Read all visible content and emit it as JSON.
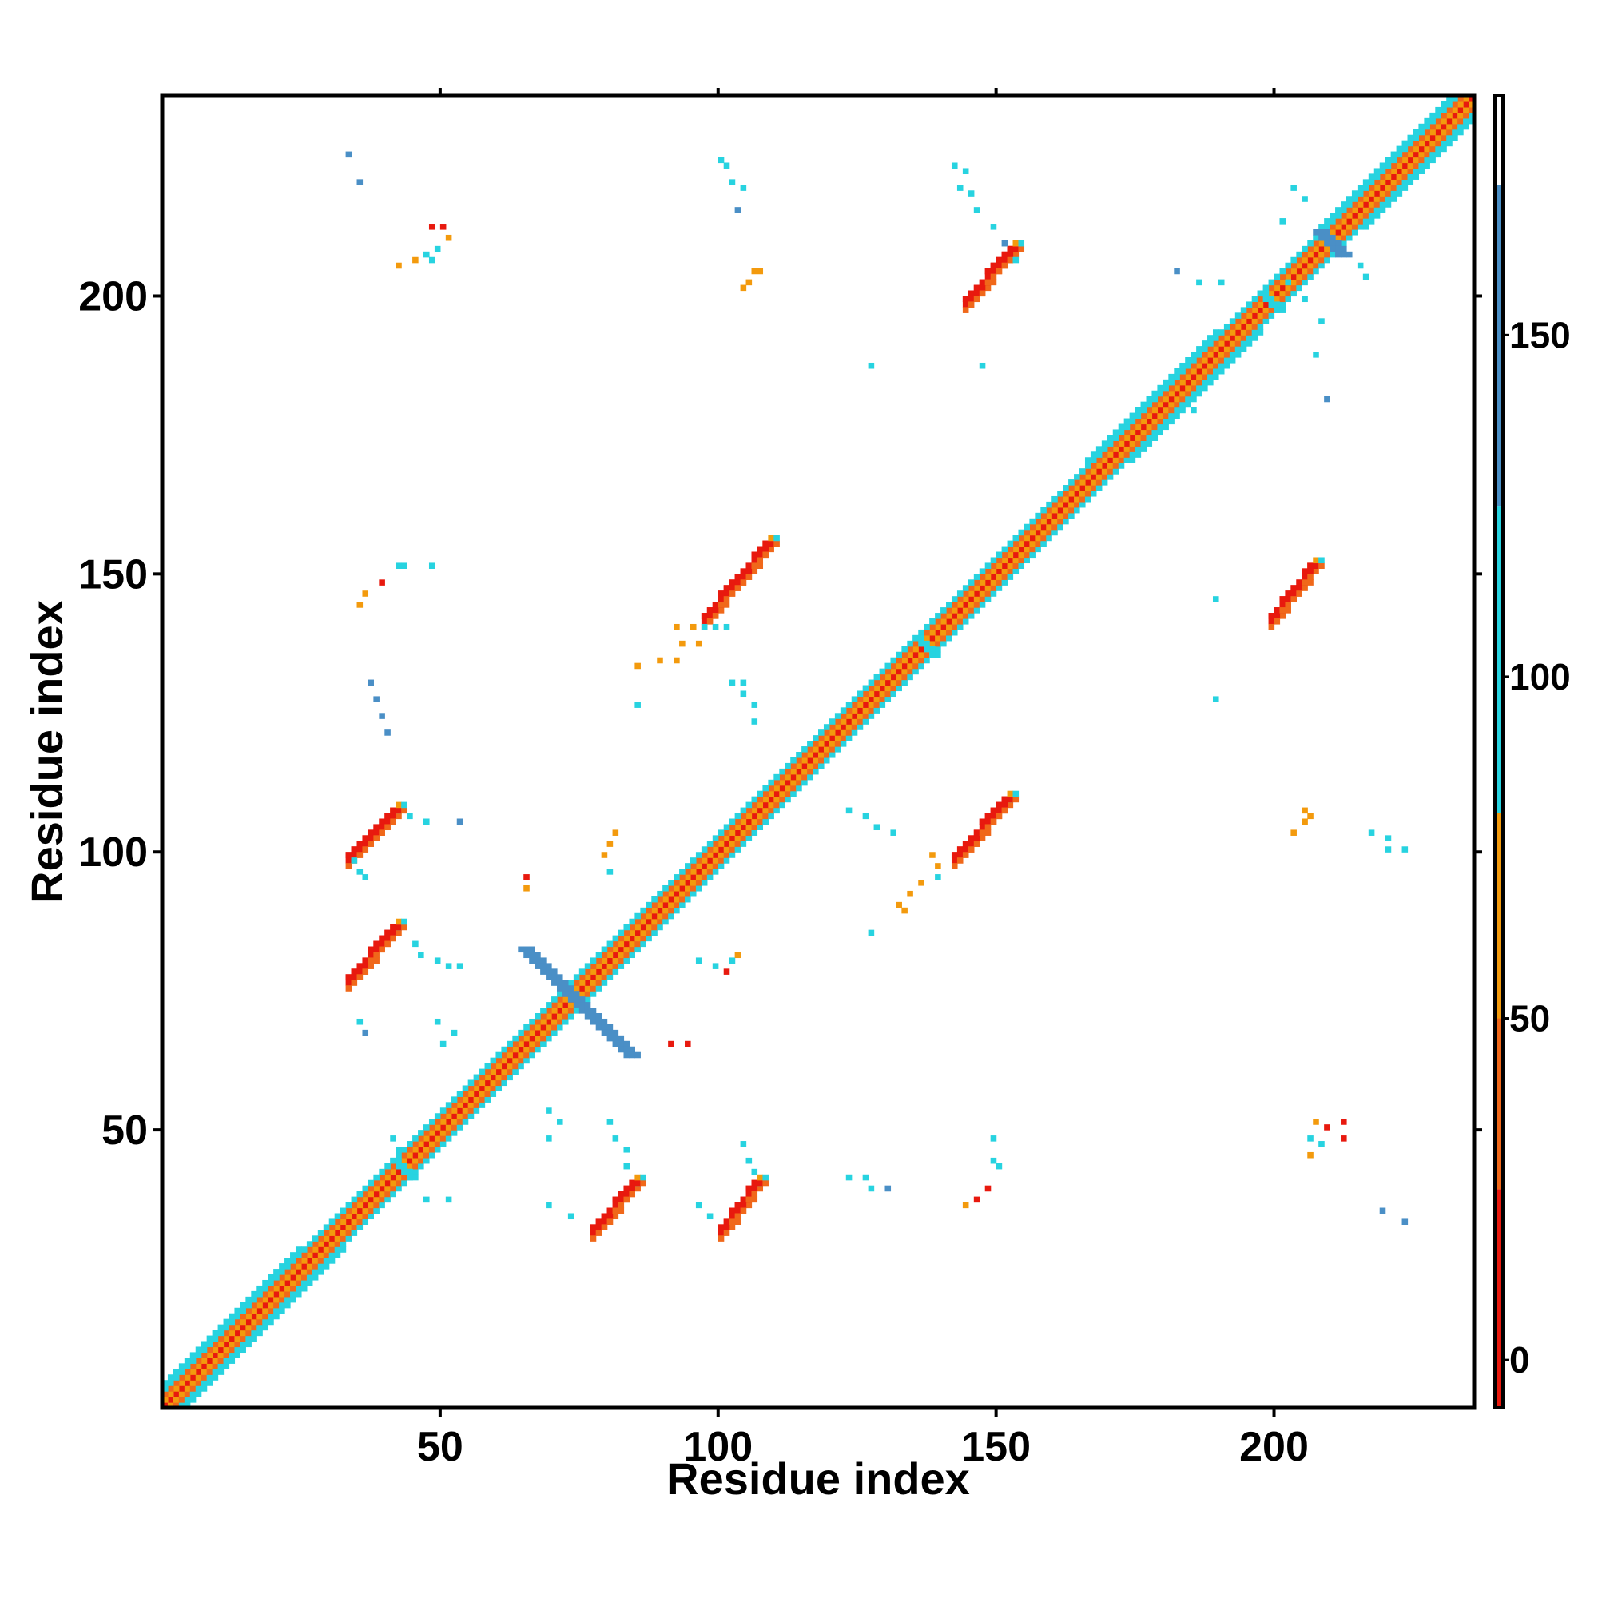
{
  "chart_data": {
    "type": "heatmap",
    "title": "",
    "xlabel": "Residue index",
    "ylabel": "Residue index",
    "xlim": [
      0,
      236
    ],
    "ylim": [
      0,
      236
    ],
    "xticks": [
      50,
      100,
      150,
      200
    ],
    "yticks": [
      50,
      100,
      150,
      200
    ],
    "colorbar": {
      "ticks": [
        0,
        50,
        100,
        150
      ],
      "range": [
        -7,
        185
      ],
      "bands": [
        {
          "from": -7,
          "to": 25,
          "color": "#e8190e"
        },
        {
          "from": 25,
          "to": 50,
          "color": "#f0681a"
        },
        {
          "from": 50,
          "to": 80,
          "color": "#f39a0d"
        },
        {
          "from": 80,
          "to": 125,
          "color": "#27d3e0"
        },
        {
          "from": 125,
          "to": 172,
          "color": "#4a8fc6"
        },
        {
          "from": 172,
          "to": 185,
          "color": "#ffffff"
        }
      ]
    },
    "color_classes": {
      "red": "#e8190e",
      "orange_red": "#f0681a",
      "orange": "#f39a0d",
      "cyan": "#27d3e0",
      "blue": "#4a8fc6"
    },
    "grid": false,
    "legend": "colorbar-right",
    "diagonal_band": {
      "from": 1,
      "to": 236
    },
    "segments": [
      {
        "x": [
          34,
          42
        ],
        "y": [
          78,
          87
        ],
        "w": 3,
        "color": "red"
      },
      {
        "x": [
          34,
          42
        ],
        "y": [
          100,
          108
        ],
        "w": 3,
        "color": "red"
      },
      {
        "x": [
          78,
          85
        ],
        "y": [
          33,
          41
        ],
        "w": 3,
        "color": "red"
      },
      {
        "x": [
          101,
          107
        ],
        "y": [
          33,
          41
        ],
        "w": 3,
        "color": "red"
      },
      {
        "x": [
          98,
          109
        ],
        "y": [
          143,
          156
        ],
        "w": 3,
        "color": "red"
      },
      {
        "x": [
          143,
          152
        ],
        "y": [
          100,
          110
        ],
        "w": 3,
        "color": "red"
      },
      {
        "x": [
          145,
          153
        ],
        "y": [
          200,
          209
        ],
        "w": 3,
        "color": "red"
      },
      {
        "x": [
          200,
          207
        ],
        "y": [
          143,
          152
        ],
        "w": 3,
        "color": "red"
      },
      {
        "x": [
          65,
          84
        ],
        "y": [
          83,
          64
        ],
        "w": 3,
        "color": "blue"
      },
      {
        "x": [
          208,
          212
        ],
        "y": [
          212,
          208
        ],
        "w": 3,
        "color": "blue"
      },
      {
        "x": [
          198,
          201
        ],
        "y": [
          201,
          198
        ],
        "w": 2,
        "color": "cyan"
      },
      {
        "x": [
          136,
          139
        ],
        "y": [
          139,
          136
        ],
        "w": 2,
        "color": "cyan"
      },
      {
        "x": [
          42,
          45
        ],
        "y": [
          45,
          42
        ],
        "w": 2,
        "color": "cyan"
      }
    ],
    "points": [
      [
        34,
        226,
        "blue"
      ],
      [
        36,
        221,
        "blue"
      ],
      [
        49,
        213,
        "red"
      ],
      [
        51,
        213,
        "red"
      ],
      [
        52,
        211,
        "orange"
      ],
      [
        50,
        209,
        "cyan"
      ],
      [
        48,
        208,
        "cyan"
      ],
      [
        46,
        207,
        "orange"
      ],
      [
        43,
        206,
        "orange"
      ],
      [
        49,
        207,
        "cyan"
      ],
      [
        101,
        225,
        "cyan"
      ],
      [
        102,
        224,
        "cyan"
      ],
      [
        103,
        221,
        "cyan"
      ],
      [
        105,
        220,
        "cyan"
      ],
      [
        104,
        216,
        "blue"
      ],
      [
        107,
        205,
        "orange"
      ],
      [
        108,
        205,
        "orange"
      ],
      [
        106,
        203,
        "orange"
      ],
      [
        105,
        202,
        "orange"
      ],
      [
        143,
        224,
        "cyan"
      ],
      [
        145,
        223,
        "cyan"
      ],
      [
        144,
        220,
        "cyan"
      ],
      [
        146,
        219,
        "cyan"
      ],
      [
        147,
        216,
        "cyan"
      ],
      [
        150,
        213,
        "cyan"
      ],
      [
        152,
        210,
        "blue"
      ],
      [
        154,
        207,
        "cyan"
      ],
      [
        128,
        188,
        "cyan"
      ],
      [
        148,
        188,
        "cyan"
      ],
      [
        183,
        205,
        "blue"
      ],
      [
        187,
        203,
        "cyan"
      ],
      [
        191,
        203,
        "cyan"
      ],
      [
        203,
        203,
        "cyan"
      ],
      [
        206,
        200,
        "cyan"
      ],
      [
        209,
        196,
        "cyan"
      ],
      [
        208,
        190,
        "cyan"
      ],
      [
        210,
        182,
        "blue"
      ],
      [
        204,
        220,
        "cyan"
      ],
      [
        206,
        218,
        "cyan"
      ],
      [
        202,
        214,
        "cyan"
      ],
      [
        216,
        206,
        "cyan"
      ],
      [
        217,
        204,
        "cyan"
      ],
      [
        186,
        180,
        "cyan"
      ],
      [
        180,
        176,
        "cyan"
      ],
      [
        190,
        146,
        "cyan"
      ],
      [
        190,
        128,
        "cyan"
      ],
      [
        43,
        152,
        "cyan"
      ],
      [
        44,
        152,
        "cyan"
      ],
      [
        49,
        152,
        "cyan"
      ],
      [
        40,
        149,
        "red"
      ],
      [
        37,
        147,
        "orange"
      ],
      [
        36,
        145,
        "orange"
      ],
      [
        38,
        131,
        "blue"
      ],
      [
        39,
        128,
        "blue"
      ],
      [
        40,
        125,
        "blue"
      ],
      [
        41,
        122,
        "blue"
      ],
      [
        93,
        141,
        "orange"
      ],
      [
        96,
        141,
        "orange"
      ],
      [
        98,
        141,
        "cyan"
      ],
      [
        100,
        141,
        "cyan"
      ],
      [
        102,
        141,
        "cyan"
      ],
      [
        94,
        138,
        "orange"
      ],
      [
        97,
        138,
        "orange"
      ],
      [
        90,
        135,
        "orange"
      ],
      [
        93,
        135,
        "orange"
      ],
      [
        86,
        134,
        "orange"
      ],
      [
        103,
        131,
        "cyan"
      ],
      [
        105,
        131,
        "cyan"
      ],
      [
        105,
        129,
        "cyan"
      ],
      [
        107,
        127,
        "cyan"
      ],
      [
        107,
        124,
        "cyan"
      ],
      [
        86,
        127,
        "cyan"
      ],
      [
        48,
        106,
        "cyan"
      ],
      [
        45,
        107,
        "cyan"
      ],
      [
        54,
        106,
        "blue"
      ],
      [
        36,
        97,
        "cyan"
      ],
      [
        37,
        96,
        "cyan"
      ],
      [
        35,
        99,
        "cyan"
      ],
      [
        82,
        104,
        "orange"
      ],
      [
        81,
        102,
        "orange"
      ],
      [
        80,
        100,
        "orange"
      ],
      [
        81,
        97,
        "cyan"
      ],
      [
        66,
        96,
        "red"
      ],
      [
        66,
        94,
        "orange"
      ],
      [
        124,
        108,
        "cyan"
      ],
      [
        127,
        107,
        "cyan"
      ],
      [
        129,
        105,
        "cyan"
      ],
      [
        132,
        104,
        "cyan"
      ],
      [
        139,
        100,
        "orange"
      ],
      [
        140,
        98,
        "orange"
      ],
      [
        140,
        96,
        "cyan"
      ],
      [
        137,
        95,
        "orange"
      ],
      [
        135,
        93,
        "orange"
      ],
      [
        133,
        91,
        "orange"
      ],
      [
        128,
        86,
        "cyan"
      ],
      [
        134,
        90,
        "orange"
      ],
      [
        206,
        108,
        "orange"
      ],
      [
        207,
        107,
        "orange"
      ],
      [
        206,
        106,
        "orange"
      ],
      [
        204,
        104,
        "orange"
      ],
      [
        218,
        104,
        "cyan"
      ],
      [
        221,
        103,
        "cyan"
      ],
      [
        221,
        101,
        "cyan"
      ],
      [
        224,
        101,
        "cyan"
      ],
      [
        46,
        84,
        "cyan"
      ],
      [
        47,
        82,
        "cyan"
      ],
      [
        50,
        81,
        "cyan"
      ],
      [
        52,
        80,
        "cyan"
      ],
      [
        54,
        80,
        "cyan"
      ],
      [
        36,
        70,
        "cyan"
      ],
      [
        37,
        68,
        "blue"
      ],
      [
        50,
        70,
        "cyan"
      ],
      [
        53,
        68,
        "cyan"
      ],
      [
        51,
        66,
        "cyan"
      ],
      [
        97,
        81,
        "cyan"
      ],
      [
        100,
        80,
        "cyan"
      ],
      [
        103,
        81,
        "cyan"
      ],
      [
        104,
        82,
        "orange"
      ],
      [
        102,
        79,
        "red"
      ],
      [
        92,
        66,
        "red"
      ],
      [
        95,
        66,
        "red"
      ],
      [
        70,
        54,
        "cyan"
      ],
      [
        72,
        52,
        "cyan"
      ],
      [
        70,
        49,
        "cyan"
      ],
      [
        81,
        52,
        "cyan"
      ],
      [
        82,
        49,
        "cyan"
      ],
      [
        84,
        47,
        "cyan"
      ],
      [
        84,
        44,
        "cyan"
      ],
      [
        74,
        35,
        "cyan"
      ],
      [
        70,
        37,
        "cyan"
      ],
      [
        42,
        49,
        "cyan"
      ],
      [
        43,
        47,
        "cyan"
      ],
      [
        45,
        43,
        "cyan"
      ],
      [
        48,
        38,
        "cyan"
      ],
      [
        52,
        38,
        "cyan"
      ],
      [
        105,
        48,
        "cyan"
      ],
      [
        106,
        45,
        "cyan"
      ],
      [
        107,
        43,
        "cyan"
      ],
      [
        97,
        37,
        "cyan"
      ],
      [
        99,
        35,
        "cyan"
      ],
      [
        124,
        42,
        "cyan"
      ],
      [
        127,
        42,
        "cyan"
      ],
      [
        128,
        40,
        "cyan"
      ],
      [
        131,
        40,
        "blue"
      ],
      [
        150,
        49,
        "cyan"
      ],
      [
        150,
        45,
        "cyan"
      ],
      [
        151,
        44,
        "cyan"
      ],
      [
        149,
        40,
        "red"
      ],
      [
        147,
        38,
        "red"
      ],
      [
        145,
        37,
        "orange"
      ],
      [
        208,
        52,
        "orange"
      ],
      [
        210,
        51,
        "red"
      ],
      [
        213,
        52,
        "red"
      ],
      [
        207,
        49,
        "cyan"
      ],
      [
        209,
        48,
        "cyan"
      ],
      [
        213,
        49,
        "red"
      ],
      [
        207,
        46,
        "orange"
      ],
      [
        220,
        36,
        "blue"
      ],
      [
        224,
        34,
        "blue"
      ]
    ]
  }
}
